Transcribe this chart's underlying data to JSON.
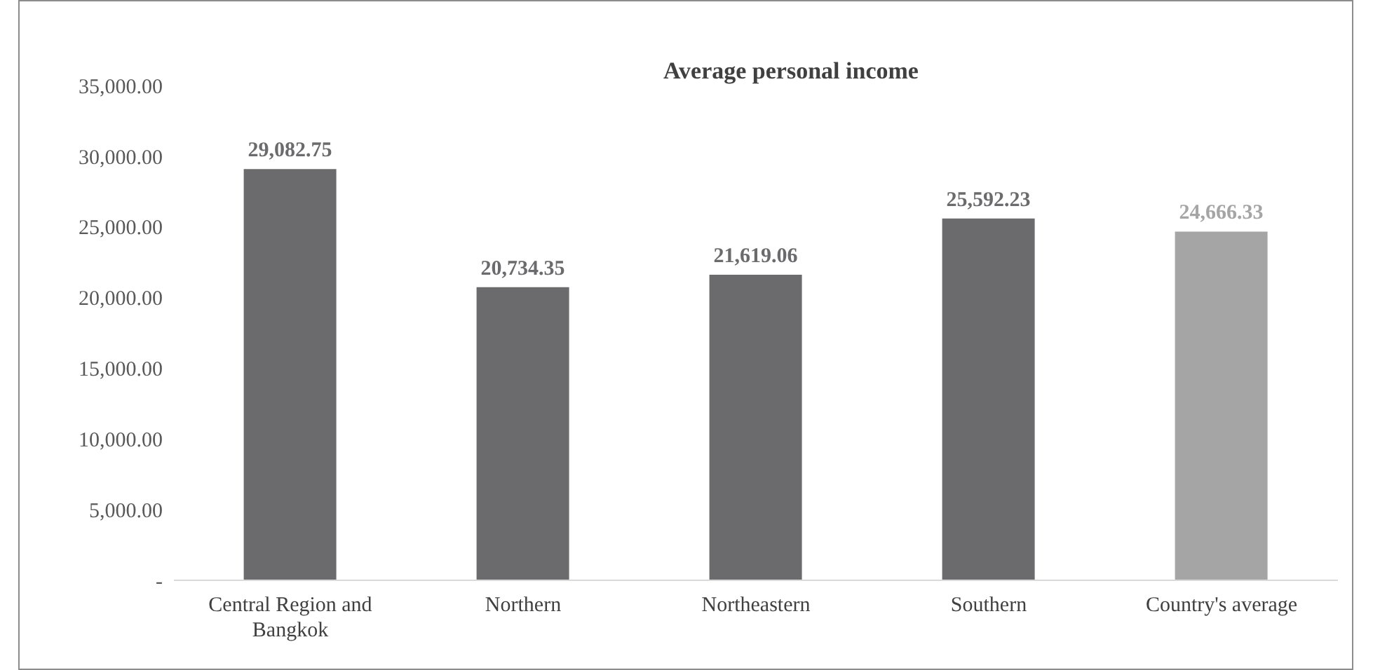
{
  "chart_data": {
    "type": "bar",
    "title": "Average personal income",
    "categories": [
      "Central Region and Bangkok",
      "Northern",
      "Northeastern",
      "Southern",
      "Country's average"
    ],
    "values": [
      29082.75,
      20734.35,
      21619.06,
      25592.23,
      24666.33
    ],
    "colors": [
      "#6b6b6d",
      "#6b6b6d",
      "#6b6b6d",
      "#6b6b6d",
      "#a5a5a5"
    ],
    "value_labels": [
      "29,082.75",
      "20,734.35",
      "21,619.06",
      "25,592.23",
      "24,666.33"
    ],
    "ylim": [
      0,
      35000
    ],
    "yticks": [
      {
        "value": 0,
        "label": "-"
      },
      {
        "value": 5000,
        "label": "5,000.00"
      },
      {
        "value": 10000,
        "label": "10,000.00"
      },
      {
        "value": 15000,
        "label": "15,000.00"
      },
      {
        "value": 20000,
        "label": "20,000.00"
      },
      {
        "value": 25000,
        "label": "25,000.00"
      },
      {
        "value": 30000,
        "label": "30,000.00"
      },
      {
        "value": 35000,
        "label": "35,000.00"
      }
    ],
    "grid": false,
    "legend": false
  }
}
